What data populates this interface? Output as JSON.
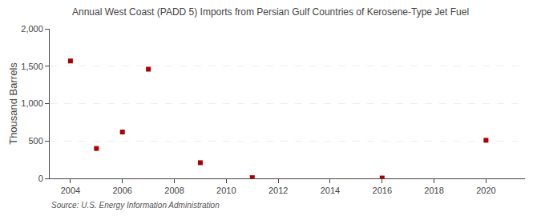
{
  "chart_data": {
    "type": "scatter",
    "title": "Annual West Coast (PADD 5) Imports from Persian Gulf Countries of Kerosene-Type Jet Fuel",
    "ylabel": "Thousand Barrels",
    "annotations": [
      "Source: U.S. Energy Information Administration"
    ],
    "x": [
      2004,
      2005,
      2006,
      2007,
      2009,
      2011,
      2016,
      2020
    ],
    "values": [
      1570,
      400,
      620,
      1460,
      210,
      10,
      5,
      510
    ],
    "color": "#aa0000",
    "marker": "square",
    "xlim": [
      2003.2,
      2021.5
    ],
    "xticks": [
      2004,
      2006,
      2008,
      2010,
      2012,
      2014,
      2016,
      2018,
      2020
    ],
    "ylim": [
      0,
      2000
    ],
    "yticks": [
      0,
      500,
      {
        "value": 1000,
        "label": "1,000"
      },
      {
        "value": 1500,
        "label": "1,500"
      },
      {
        "value": 2000,
        "label": "2,000"
      }
    ],
    "grid": "y"
  }
}
